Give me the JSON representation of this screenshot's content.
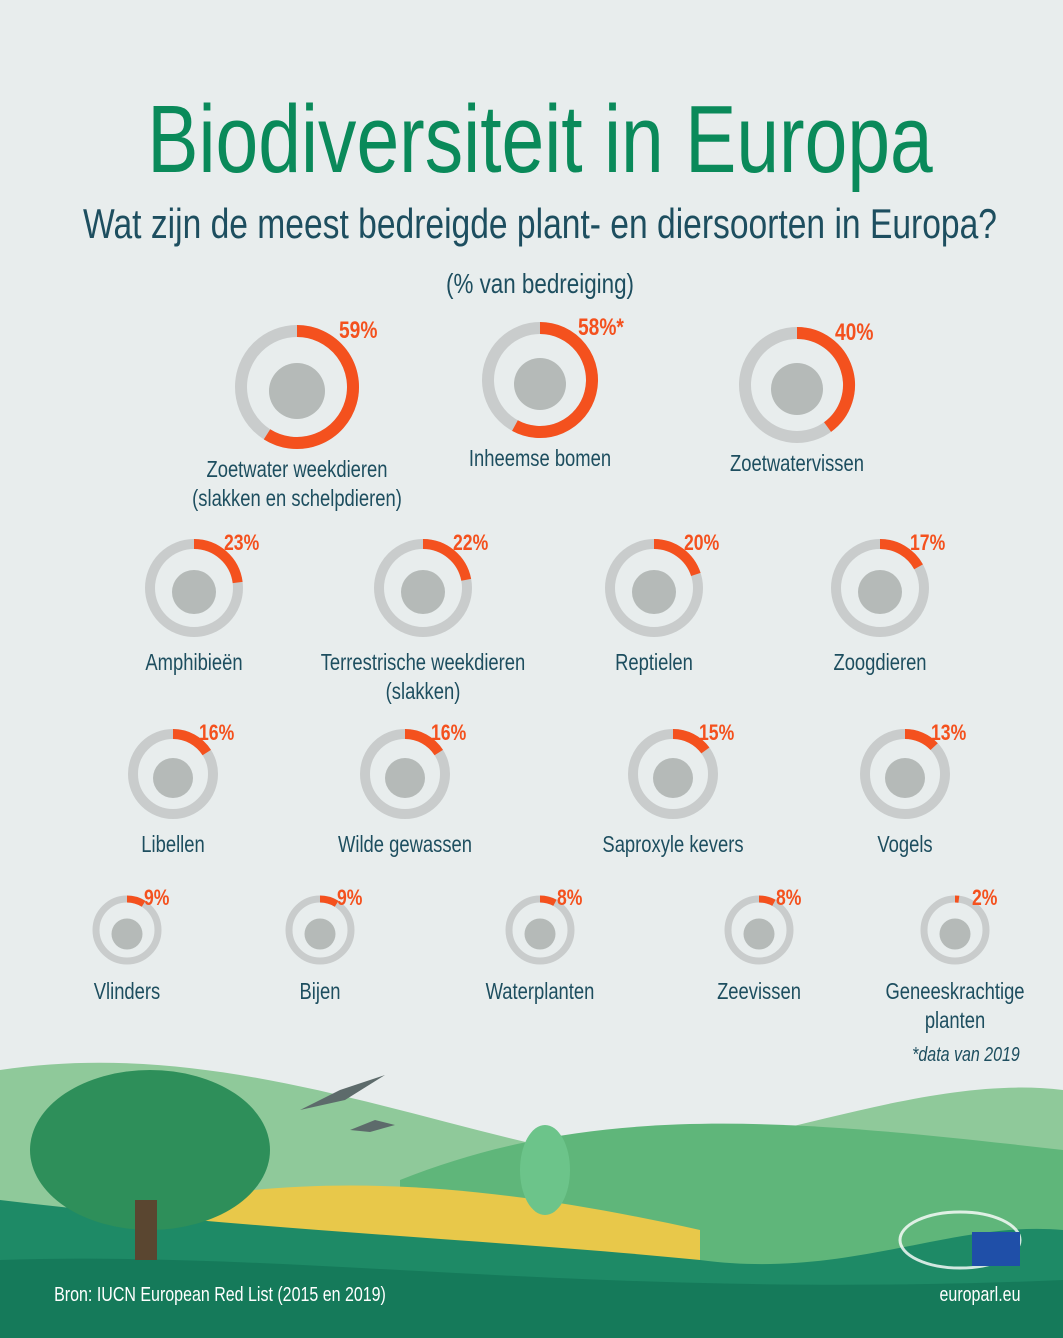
{
  "chart_data": {
    "type": "ring",
    "title": "Biodiversiteit in Europa",
    "subtitle": "Wat zijn de meest bedreigde plant- en diersoorten in Europa?",
    "unit_note": "(% van bedreiging)",
    "categories": [
      "Zoetwater weekdieren (slakken en schelpdieren)",
      "Inheemse bomen",
      "Zoetwatervissen",
      "Amphibieën",
      "Terrestrische weekdieren (slakken)",
      "Reptielen",
      "Zoogdieren",
      "Libellen",
      "Wilde gewassen",
      "Saproxyle kevers",
      "Vogels",
      "Vlinders",
      "Bijen",
      "Waterplanten",
      "Zeevissen",
      "Geneeskrachtige planten"
    ],
    "values": [
      59,
      58,
      40,
      23,
      22,
      20,
      17,
      16,
      16,
      15,
      13,
      9,
      9,
      8,
      8,
      2
    ],
    "value_labels": [
      "59%",
      "58%*",
      "40%",
      "23%",
      "22%",
      "20%",
      "17%",
      "16%",
      "16%",
      "15%",
      "13%",
      "9%",
      "9%",
      "8%",
      "8%",
      "2%"
    ],
    "color": "#f4511e",
    "footnote": "*data van 2019",
    "source": "Bron: IUCN European Red List (2015 en 2019)",
    "site": "europarl.eu"
  }
}
